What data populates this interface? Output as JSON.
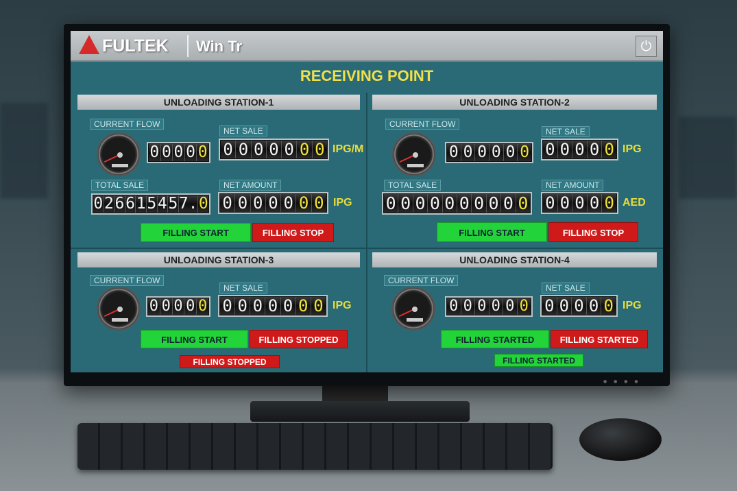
{
  "header": {
    "brand": "FULTEK",
    "app_name": "Win Tr",
    "power_icon": "power-icon"
  },
  "title": "RECEIVING POINT",
  "colors": {
    "title": "#f0e04a",
    "panel": "#2a6a76",
    "start": "#22d43a",
    "stop": "#d01a1a",
    "digit_highlight": "#f2e43a"
  },
  "stations": [
    {
      "name": "UNLOADING STATION-1",
      "current_flow": {
        "label": "CURRENT FLOW",
        "digits": "00000",
        "highlight": 1
      },
      "net_sale": {
        "label": "NET SALE",
        "digits": "0000000",
        "highlight": 2,
        "unit": "IPG/M"
      },
      "total_sale": {
        "label": "TOTAL SALE",
        "digits": "026615457.0",
        "highlight": 1
      },
      "net_amount": {
        "label": "NET AMOUNT",
        "digits": "0000000",
        "highlight": 2,
        "unit": "IPG"
      },
      "start_button": "FILLING START",
      "stop_button": "FILLING STOP"
    },
    {
      "name": "UNLOADING STATION-2",
      "current_flow": {
        "label": "CURRENT FLOW",
        "digits": "000000",
        "highlight": 1
      },
      "net_sale": {
        "label": "NET SALE",
        "digits": "00000",
        "highlight": 1,
        "unit": "IPG"
      },
      "total_sale": {
        "label": "TOTAL SALE",
        "digits": "0000000000",
        "highlight": 1
      },
      "net_amount": {
        "label": "NET AMOUNT",
        "digits": "00000",
        "highlight": 1,
        "unit": "AED"
      },
      "start_button": "FILLING START",
      "stop_button": "FILLING STOP"
    },
    {
      "name": "UNLOADING STATION-3",
      "current_flow": {
        "label": "CURRENT FLOW",
        "digits": "00000",
        "highlight": 1
      },
      "net_sale": {
        "label": "NET SALE",
        "digits": "0000000",
        "highlight": 2,
        "unit": "IPG"
      },
      "start_button": "FILLING START",
      "stop_button": "FILLING STOPPED",
      "status": "FILLING STOPPED",
      "status_color": "red"
    },
    {
      "name": "UNLOADING STATION-4",
      "current_flow": {
        "label": "CURRENT FLOW",
        "digits": "000000",
        "highlight": 1
      },
      "net_sale": {
        "label": "NET SALE",
        "digits": "00000",
        "highlight": 1,
        "unit": "IPG"
      },
      "start_button": "FILLING STARTED",
      "stop_button": "FILLING STARTED",
      "status": "FILLING STARTED",
      "status_color": "green"
    }
  ]
}
